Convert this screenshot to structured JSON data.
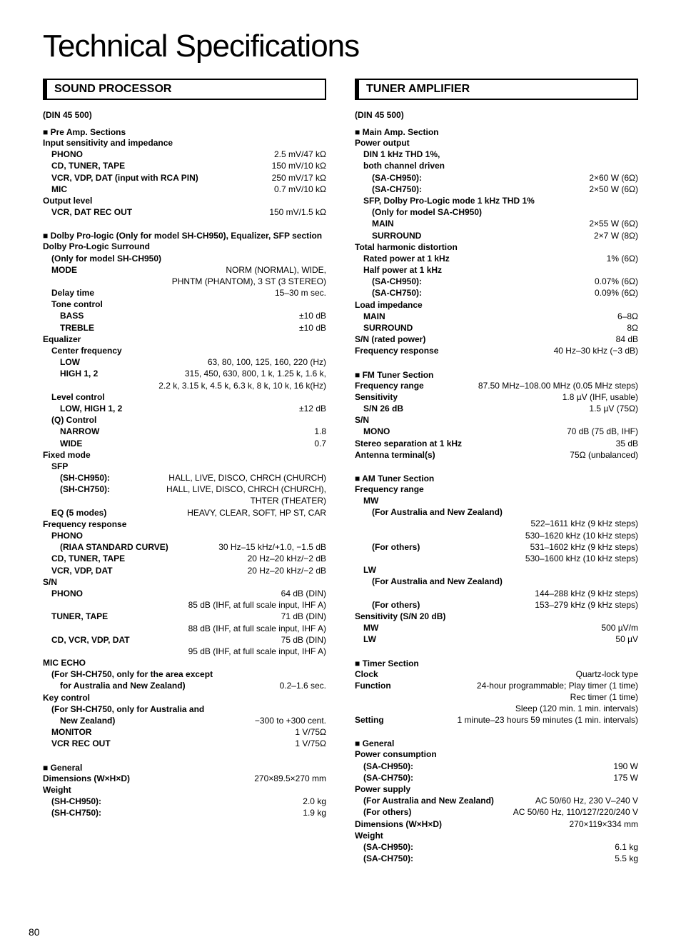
{
  "title": "Technical Specifications",
  "pageNum": "80",
  "left": {
    "header": "SOUND PROCESSOR",
    "standard": "(DIN 45 500)",
    "pre": {
      "title": "Pre Amp. Sections",
      "sens": "Input sensitivity and impedance",
      "phono_l": "PHONO",
      "phono_v": "2.5 mV/47 kΩ",
      "cdt_l": "CD, TUNER, TAPE",
      "cdt_v": "150 mV/10 kΩ",
      "vcr_l": "VCR, VDP, DAT (input with RCA PIN)",
      "vcr_v": "250 mV/17 kΩ",
      "mic_l": "MIC",
      "mic_v": "0.7 mV/10 kΩ",
      "out": "Output level",
      "rec_l": "VCR, DAT REC OUT",
      "rec_v": "150 mV/1.5 kΩ"
    },
    "dpl": {
      "title": "Dolby Pro-logic (Only for model SH-CH950), Equalizer, SFP section",
      "surr": "Dolby Pro-Logic Surround",
      "only": "(Only for model SH-CH950)",
      "mode_l": "MODE",
      "mode_v": "NORM (NORMAL), WIDE,",
      "mode_v2": "PHNTM (PHANTOM), 3 ST (3 STEREO)",
      "delay_l": "Delay time",
      "delay_v": "15–30 m sec.",
      "tone": "Tone control",
      "bass_l": "BASS",
      "bass_v": "±10 dB",
      "treb_l": "TREBLE",
      "treb_v": "±10 dB",
      "eq": "Equalizer",
      "cf": "Center frequency",
      "low_l": "LOW",
      "low_v": "63, 80, 100, 125, 160, 220 (Hz)",
      "high_l": "HIGH 1, 2",
      "high_v": "315, 450, 630, 800, 1 k, 1.25 k, 1.6 k,",
      "high_v2": "2.2 k, 3.15 k, 4.5 k, 6.3 k, 8 k, 10 k, 16 k(Hz)",
      "lc": "Level control",
      "lh_l": "LOW, HIGH 1, 2",
      "lh_v": "±12 dB",
      "qc": "(Q) Control",
      "nar_l": "NARROW",
      "nar_v": "1.8",
      "wide_l": "WIDE",
      "wide_v": "0.7",
      "fm": "Fixed mode",
      "sfp": "SFP",
      "sfp950_l": "(SH-CH950):",
      "sfp950_v": "HALL, LIVE, DISCO, CHRCH (CHURCH)",
      "sfp750_l": "(SH-CH750):",
      "sfp750_v": "HALL, LIVE, DISCO, CHRCH (CHURCH),",
      "sfp750_v2": "THTER (THEATER)",
      "eq5_l": "EQ (5 modes)",
      "eq5_v": "HEAVY, CLEAR, SOFT, HP ST, CAR",
      "fr": "Frequency response",
      "frp": "PHONO",
      "riaa_l": "(RIAA STANDARD CURVE)",
      "riaa_v": "30 Hz–15 kHz/+1.0, −1.5 dB",
      "cdt2_l": "CD, TUNER, TAPE",
      "cdt2_v": "20 Hz–20 kHz/−2 dB",
      "vcr2_l": "VCR, VDP, DAT",
      "vcr2_v": "20 Hz–20 kHz/−2 dB",
      "sn": "S/N",
      "snp_l": "PHONO",
      "snp_v": "64 dB (DIN)",
      "snp_v2": "85 dB (IHF, at full scale input, IHF A)",
      "snt_l": "TUNER, TAPE",
      "snt_v": "71 dB (DIN)",
      "snt_v2": "88 dB (IHF, at full scale input, IHF A)",
      "snc_l": "CD, VCR, VDP, DAT",
      "snc_v": "75 dB (DIN)",
      "snc_v2": "95 dB (IHF, at full scale input, IHF A)",
      "mic": "MIC ECHO",
      "mic1": "(For SH-CH750, only for the area except",
      "mic2_l": "for Australia and New Zealand)",
      "mic2_v": "0.2–1.6 sec.",
      "kc": "Key control",
      "kc1": "(For SH-CH750, only for Australia and",
      "kc2_l": "New Zealand)",
      "kc2_v": "−300 to +300 cent.",
      "mon_l": "MONITOR",
      "mon_v": "1 V/75Ω",
      "vro_l": "VCR REC OUT",
      "vro_v": "1 V/75Ω"
    },
    "gen": {
      "title": "General",
      "dim_l": "Dimensions (W×H×D)",
      "dim_v": "270×89.5×270 mm",
      "w": "Weight",
      "w950_l": "(SH-CH950):",
      "w950_v": "2.0 kg",
      "w750_l": "(SH-CH750):",
      "w750_v": "1.9 kg"
    }
  },
  "right": {
    "header": "TUNER AMPLIFIER",
    "standard": "(DIN 45 500)",
    "main": {
      "title": "Main Amp. Section",
      "po": "Power output",
      "din": "DIN 1 kHz THD 1%,",
      "both": "both channel driven",
      "sa950_l": "(SA-CH950):",
      "sa950_v": "2×60 W (6Ω)",
      "sa750_l": "(SA-CH750):",
      "sa750_v": "2×50 W (6Ω)",
      "sfp": "SFP, Dolby Pro-Logic mode 1 kHz THD 1%",
      "only": "(Only for model SA-CH950)",
      "mn_l": "MAIN",
      "mn_v": "2×55 W (6Ω)",
      "sur_l": "SURROUND",
      "sur_v": "2×7 W (8Ω)",
      "thd": "Total harmonic distortion",
      "rp_l": "Rated power at 1 kHz",
      "rp_v": "1% (6Ω)",
      "hp": "Half power at 1 kHz",
      "hp950_l": "(SA-CH950):",
      "hp950_v": "0.07% (6Ω)",
      "hp750_l": "(SA-CH750):",
      "hp750_v": "0.09% (6Ω)",
      "li": "Load impedance",
      "lim_l": "MAIN",
      "lim_v": "6–8Ω",
      "lis_l": "SURROUND",
      "lis_v": "8Ω",
      "snr_l": "S/N (rated power)",
      "snr_v": "84 dB",
      "fr_l": "Frequency response",
      "fr_v": "40 Hz–30 kHz (−3 dB)"
    },
    "fm": {
      "title": "FM Tuner Section",
      "fr_l": "Frequency range",
      "fr_v": "87.50 MHz–108.00 MHz (0.05 MHz steps)",
      "sens_l": "Sensitivity",
      "sens_v": "1.8 µV (IHF, usable)",
      "sn26_l": "S/N 26 dB",
      "sn26_v": "1.5 µV (75Ω)",
      "sn": "S/N",
      "mono_l": "MONO",
      "mono_v": "70 dB (75 dB, IHF)",
      "ss_l": "Stereo separation at 1 kHz",
      "ss_v": "35 dB",
      "at_l": "Antenna terminal(s)",
      "at_v": "75Ω (unbalanced)"
    },
    "am": {
      "title": "AM Tuner Section",
      "fr": "Frequency range",
      "mw": "MW",
      "anz": "(For Australia and New Zealand)",
      "anz1": "522–1611 kHz (9 kHz steps)",
      "anz2": "530–1620 kHz (10 kHz steps)",
      "oth_l": "(For others)",
      "oth1": "531–1602 kHz (9 kHz steps)",
      "oth2": "530–1600 kHz (10 kHz steps)",
      "lw": "LW",
      "lanz": "(For Australia and New Zealand)",
      "lanz1": "144–288 kHz (9 kHz steps)",
      "loth_l": "(For others)",
      "loth_v": "153–279 kHz (9 kHz steps)",
      "sens": "Sensitivity (S/N 20 dB)",
      "smw_l": "MW",
      "smw_v": "500 µV/m",
      "slw_l": "LW",
      "slw_v": "50 µV"
    },
    "timer": {
      "title": "Timer Section",
      "clk_l": "Clock",
      "clk_v": "Quartz-lock type",
      "fn_l": "Function",
      "fn_v": "24-hour programmable;  Play timer (1 time)",
      "fn_v2": "Rec timer (1 time)",
      "fn_v3": "Sleep (120 min. 1 min. intervals)",
      "set_l": "Setting",
      "set_v": "1 minute–23 hours 59 minutes (1 min. intervals)"
    },
    "gen": {
      "title": "General",
      "pc": "Power consumption",
      "pc950_l": "(SA-CH950):",
      "pc950_v": "190 W",
      "pc750_l": "(SA-CH750):",
      "pc750_v": "175 W",
      "ps": "Power supply",
      "psanz_l": "(For Australia and New Zealand)",
      "psanz_v": "AC 50/60 Hz, 230 V–240 V",
      "psoth_l": "(For others)",
      "psoth_v": "AC 50/60 Hz, 110/127/220/240 V",
      "dim_l": "Dimensions (W×H×D)",
      "dim_v": "270×119×334 mm",
      "w": "Weight",
      "w950_l": "(SA-CH950):",
      "w950_v": "6.1 kg",
      "w750_l": "(SA-CH750):",
      "w750_v": "5.5 kg"
    }
  }
}
